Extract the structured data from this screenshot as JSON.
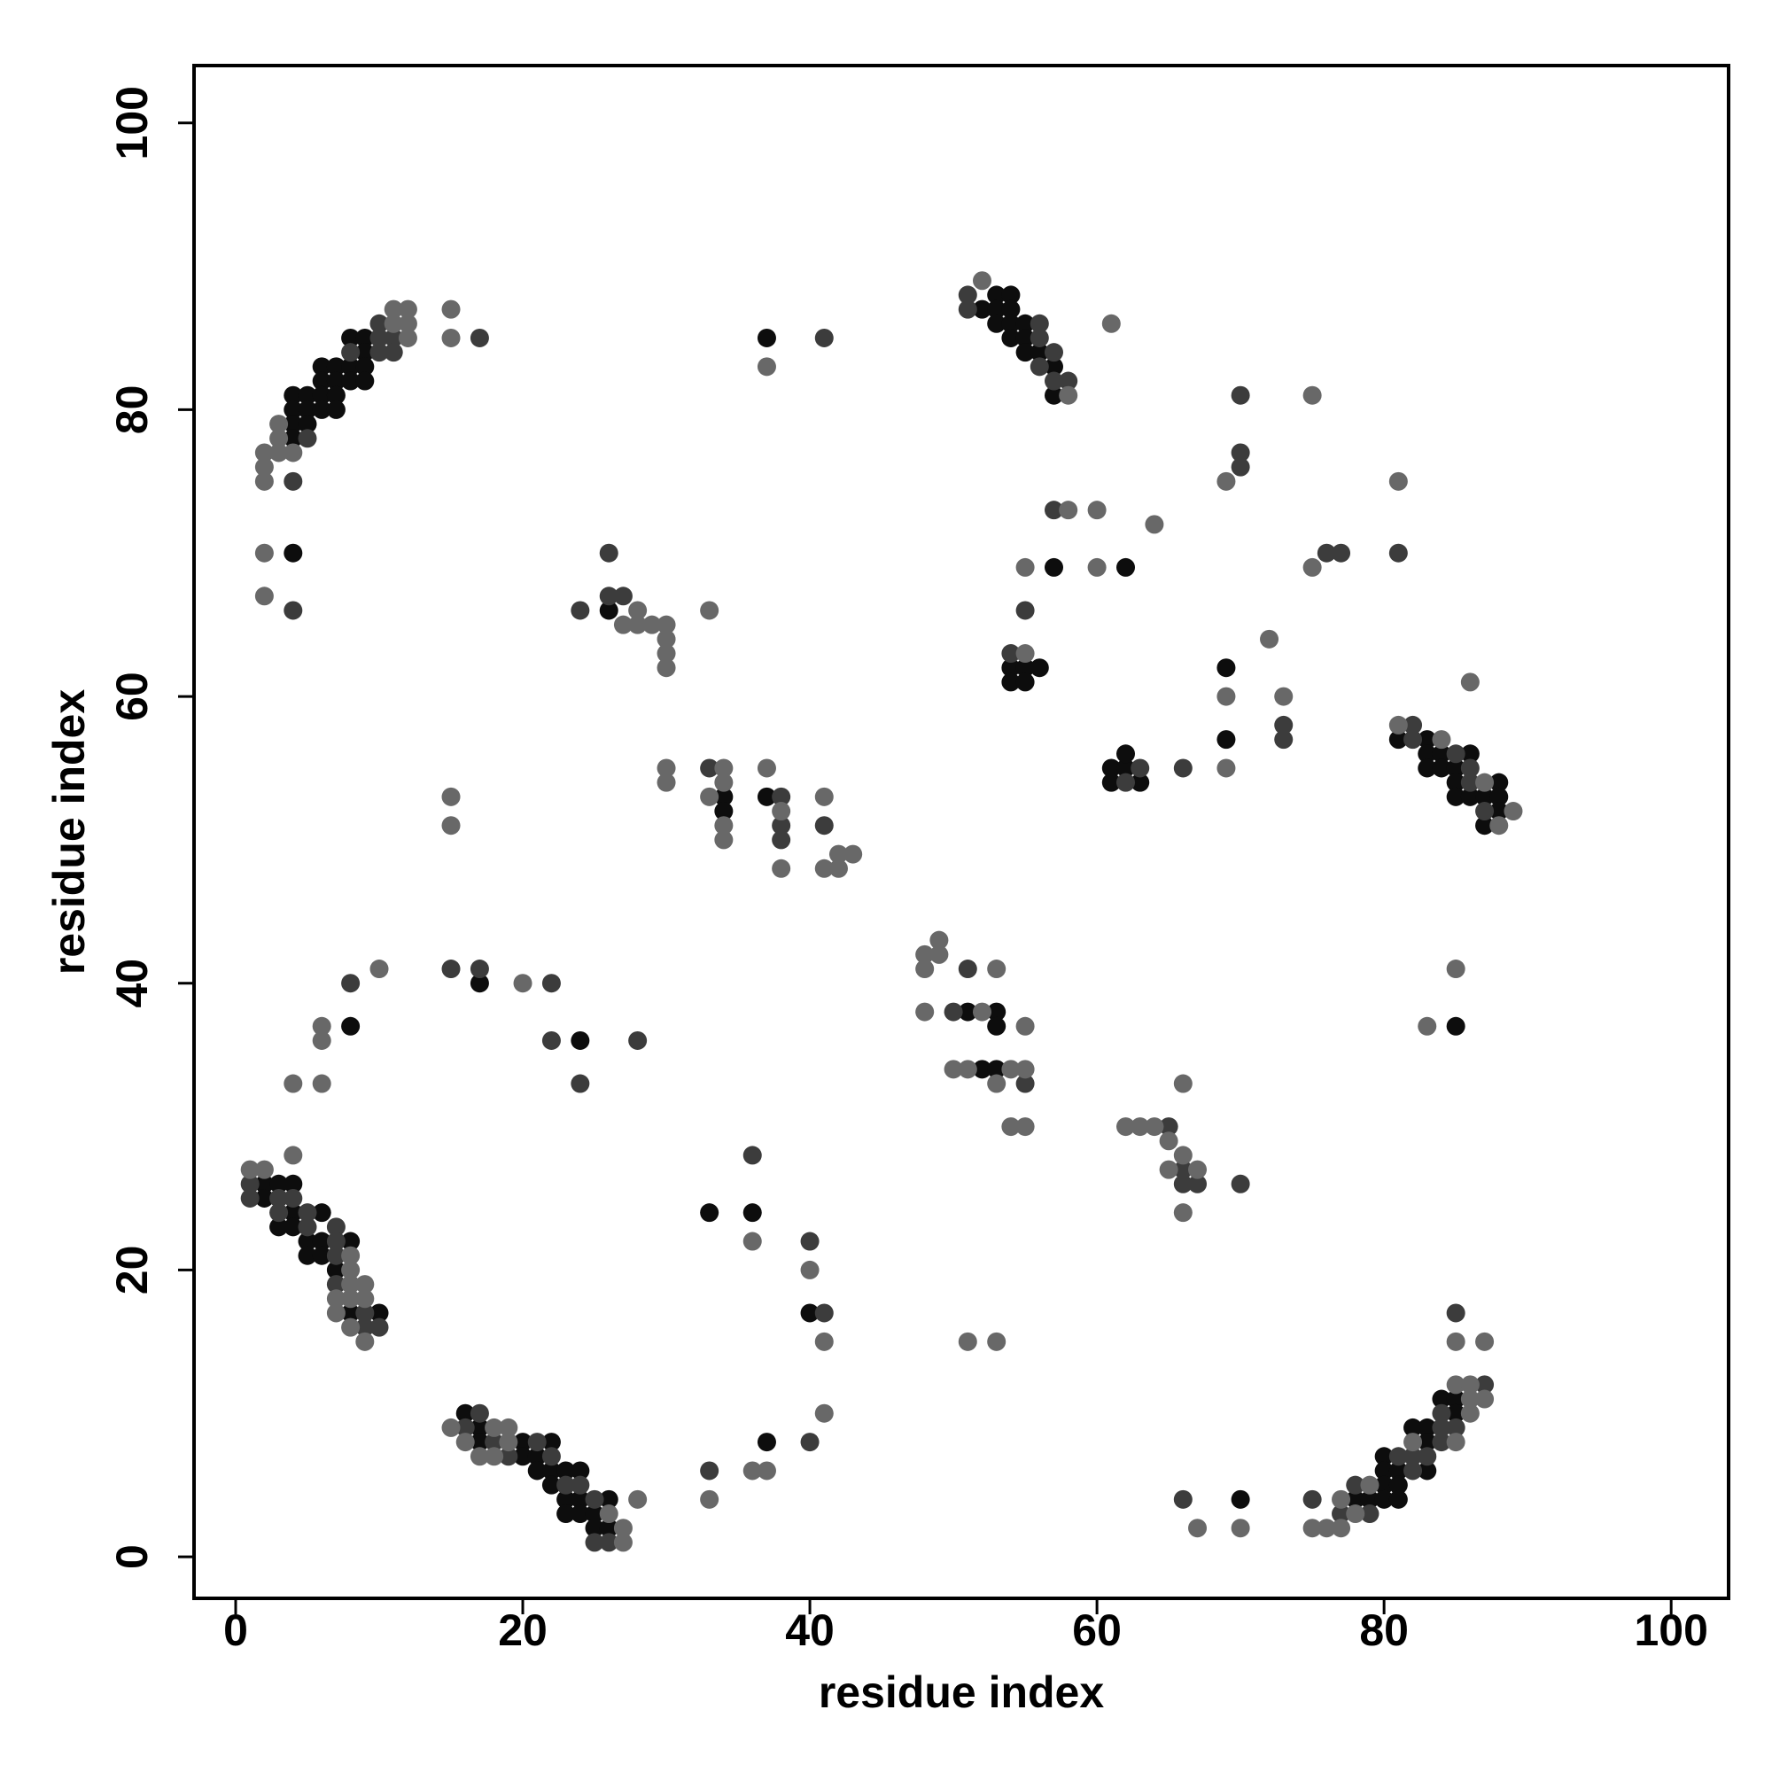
{
  "chart_data": {
    "type": "scatter",
    "xlabel": "residue index",
    "ylabel": "residue index",
    "xlim": [
      -2.9,
      104
    ],
    "ylim": [
      -2.9,
      104
    ],
    "xticks": [
      0,
      20,
      40,
      60,
      80,
      100
    ],
    "yticks": [
      0,
      20,
      40,
      60,
      80,
      100
    ],
    "series": [
      {
        "color": "#0d0d0d",
        "x": [
          4,
          4,
          4,
          4,
          5,
          5,
          5,
          6,
          6,
          6,
          6,
          7,
          7,
          7,
          7,
          8,
          8,
          8,
          9,
          9,
          9,
          9,
          4,
          37,
          52,
          53,
          53,
          53,
          54,
          54,
          54,
          54,
          55,
          55,
          55,
          56,
          57,
          57,
          57,
          62,
          54,
          55,
          56,
          54,
          55,
          69,
          69,
          61,
          62,
          62,
          61,
          63,
          81,
          83,
          83,
          83,
          84,
          84,
          85,
          85,
          85,
          86,
          86,
          87,
          87,
          88,
          88,
          88,
          26,
          34,
          34,
          37,
          8,
          17,
          24,
          51,
          53,
          53,
          52,
          53,
          85,
          2,
          2,
          3,
          3,
          4,
          4,
          4,
          5,
          5,
          6,
          6,
          6,
          7,
          8,
          8,
          10,
          33,
          36,
          40,
          37,
          16,
          17,
          17,
          20,
          20,
          21,
          21,
          22,
          22,
          22,
          23,
          23,
          23,
          24,
          24,
          24,
          25,
          25,
          26,
          26,
          70,
          78,
          79,
          80,
          80,
          80,
          80,
          81,
          81,
          81,
          82,
          83,
          83,
          83,
          84,
          85,
          85
        ],
        "y": [
          81,
          80,
          79,
          78,
          81,
          80,
          79,
          83,
          82,
          81,
          80,
          83,
          82,
          81,
          80,
          85,
          83,
          82,
          85,
          84,
          83,
          82,
          70,
          85,
          87,
          88,
          87,
          86,
          88,
          87,
          86,
          85,
          86,
          85,
          84,
          84,
          83,
          81,
          69,
          69,
          62,
          62,
          62,
          61,
          61,
          62,
          57,
          55,
          55,
          56,
          54,
          54,
          57,
          57,
          56,
          55,
          56,
          55,
          55,
          54,
          53,
          56,
          53,
          53,
          51,
          54,
          53,
          52,
          66,
          53,
          52,
          53,
          37,
          40,
          36,
          38,
          38,
          37,
          34,
          34,
          37,
          26,
          25,
          26,
          23,
          26,
          24,
          23,
          22,
          21,
          24,
          22,
          21,
          20,
          22,
          17,
          17,
          24,
          24,
          17,
          8,
          10,
          9,
          8,
          8,
          7,
          7,
          6,
          8,
          6,
          5,
          6,
          4,
          3,
          6,
          4,
          3,
          3,
          2,
          4,
          2,
          4,
          4,
          4,
          7,
          6,
          5,
          4,
          6,
          5,
          4,
          9,
          9,
          8,
          6,
          11,
          11,
          10
        ]
      },
      {
        "color": "#3c3c3c",
        "x": [
          4,
          5,
          8,
          10,
          10,
          10,
          11,
          11,
          17,
          4,
          41,
          51,
          51,
          56,
          56,
          56,
          57,
          57,
          58,
          70,
          70,
          70,
          57,
          76,
          77,
          81,
          55,
          54,
          73,
          73,
          63,
          62,
          66,
          82,
          82,
          85,
          86,
          86,
          87,
          26,
          24,
          26,
          27,
          33,
          38,
          38,
          38,
          41,
          8,
          15,
          17,
          22,
          22,
          24,
          28,
          51,
          50,
          55,
          65,
          66,
          66,
          67,
          70,
          1,
          1,
          3,
          3,
          4,
          5,
          5,
          7,
          7,
          7,
          7,
          9,
          9,
          10,
          36,
          40,
          41,
          40,
          33,
          16,
          17,
          18,
          19,
          21,
          22,
          23,
          24,
          25,
          25,
          26,
          66,
          75,
          77,
          78,
          79,
          81,
          82,
          82,
          83,
          84,
          84,
          84,
          85,
          87,
          85
        ],
        "y": [
          75,
          78,
          84,
          86,
          85,
          84,
          85,
          84,
          85,
          66,
          85,
          88,
          87,
          86,
          85,
          83,
          84,
          82,
          82,
          81,
          77,
          76,
          73,
          70,
          70,
          70,
          66,
          63,
          58,
          57,
          55,
          54,
          55,
          58,
          57,
          56,
          55,
          54,
          52,
          70,
          66,
          67,
          67,
          55,
          53,
          51,
          50,
          51,
          40,
          41,
          41,
          40,
          36,
          33,
          36,
          41,
          38,
          33,
          30,
          27,
          26,
          26,
          26,
          26,
          25,
          25,
          24,
          25,
          24,
          23,
          23,
          22,
          21,
          19,
          17,
          16,
          16,
          28,
          22,
          17,
          8,
          6,
          9,
          10,
          8,
          7,
          8,
          7,
          5,
          5,
          4,
          1,
          1,
          4,
          4,
          3,
          5,
          3,
          7,
          7,
          6,
          7,
          10,
          9,
          8,
          9,
          12,
          17
        ]
      },
      {
        "color": "#686868",
        "x": [
          2,
          2,
          2,
          3,
          3,
          3,
          4,
          11,
          11,
          12,
          12,
          12,
          15,
          15,
          2,
          2,
          37,
          52,
          58,
          61,
          75,
          69,
          81,
          58,
          60,
          64,
          55,
          60,
          75,
          72,
          55,
          69,
          73,
          86,
          69,
          81,
          84,
          87,
          88,
          89,
          27,
          28,
          28,
          29,
          30,
          30,
          30,
          30,
          33,
          30,
          30,
          34,
          33,
          34,
          34,
          34,
          37,
          38,
          38,
          41,
          41,
          42,
          42,
          43,
          15,
          15,
          10,
          6,
          6,
          4,
          6,
          20,
          4,
          48,
          48,
          49,
          49,
          48,
          53,
          52,
          55,
          50,
          51,
          54,
          55,
          53,
          54,
          55,
          62,
          63,
          64,
          65,
          66,
          65,
          67,
          66,
          66,
          85,
          83,
          1,
          2,
          7,
          7,
          8,
          8,
          8,
          8,
          8,
          9,
          9,
          9,
          36,
          40,
          41,
          41,
          36,
          37,
          33,
          28,
          51,
          53,
          15,
          16,
          17,
          18,
          18,
          19,
          19,
          26,
          27,
          27,
          67,
          70,
          75,
          76,
          77,
          77,
          78,
          79,
          82,
          85,
          85,
          86,
          86,
          86,
          87,
          85,
          87
        ],
        "y": [
          77,
          76,
          75,
          79,
          78,
          77,
          77,
          87,
          86,
          87,
          86,
          85,
          87,
          85,
          70,
          67,
          83,
          89,
          81,
          86,
          81,
          75,
          75,
          73,
          73,
          72,
          69,
          69,
          69,
          64,
          63,
          60,
          60,
          61,
          55,
          58,
          57,
          54,
          51,
          52,
          65,
          66,
          65,
          65,
          65,
          64,
          63,
          62,
          66,
          55,
          54,
          55,
          53,
          54,
          51,
          50,
          55,
          52,
          48,
          53,
          48,
          49,
          48,
          49,
          53,
          51,
          41,
          37,
          36,
          33,
          33,
          40,
          28,
          42,
          41,
          43,
          42,
          38,
          41,
          38,
          37,
          34,
          34,
          34,
          34,
          33,
          30,
          30,
          30,
          30,
          30,
          29,
          28,
          27,
          27,
          24,
          33,
          41,
          37,
          27,
          27,
          18,
          17,
          21,
          20,
          19,
          18,
          16,
          19,
          18,
          15,
          22,
          20,
          15,
          10,
          6,
          6,
          4,
          4,
          15,
          15,
          9,
          8,
          7,
          9,
          7,
          9,
          8,
          3,
          2,
          1,
          2,
          2,
          2,
          2,
          4,
          2,
          3,
          5,
          8,
          12,
          8,
          12,
          11,
          10,
          11,
          15,
          15
        ]
      }
    ]
  }
}
